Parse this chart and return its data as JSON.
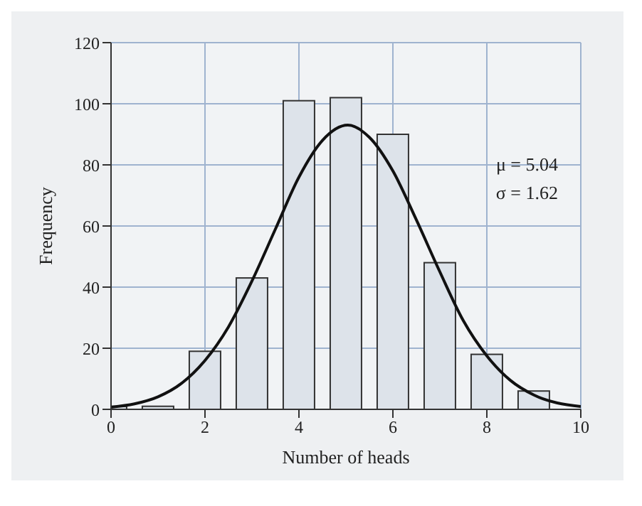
{
  "chart_data": {
    "type": "bar",
    "xlabel": "Number of heads",
    "ylabel": "Frequency",
    "x": [
      0,
      1,
      2,
      3,
      4,
      5,
      6,
      7,
      8,
      9
    ],
    "series": [
      {
        "color": "#dde3ea",
        "values": [
          1,
          1,
          19,
          43,
          101,
          102,
          90,
          48,
          18,
          6
        ]
      },
      {
        "type": "line",
        "color": "#111111",
        "x": [
          0,
          0.5,
          1,
          1.5,
          2,
          2.5,
          3,
          3.5,
          4,
          4.5,
          5.04,
          5.5,
          6,
          6.5,
          7,
          7.5,
          8,
          8.5,
          9,
          10
        ],
        "values": [
          0.7,
          1.8,
          4.1,
          8.5,
          16,
          27,
          42,
          59,
          76,
          88,
          93,
          89,
          78,
          62,
          45,
          29,
          17.5,
          9.5,
          4.7,
          0.9
        ]
      }
    ],
    "xlim": [
      0,
      10
    ],
    "xticks": [
      0,
      2,
      4,
      6,
      8,
      10
    ],
    "ylim": [
      0,
      120
    ],
    "yticks": [
      0,
      20,
      40,
      60,
      80,
      100,
      120
    ],
    "grid": true,
    "marker": "none",
    "line_style": "solid",
    "annotations": [
      "μ = 5.04",
      "σ = 1.62"
    ]
  }
}
